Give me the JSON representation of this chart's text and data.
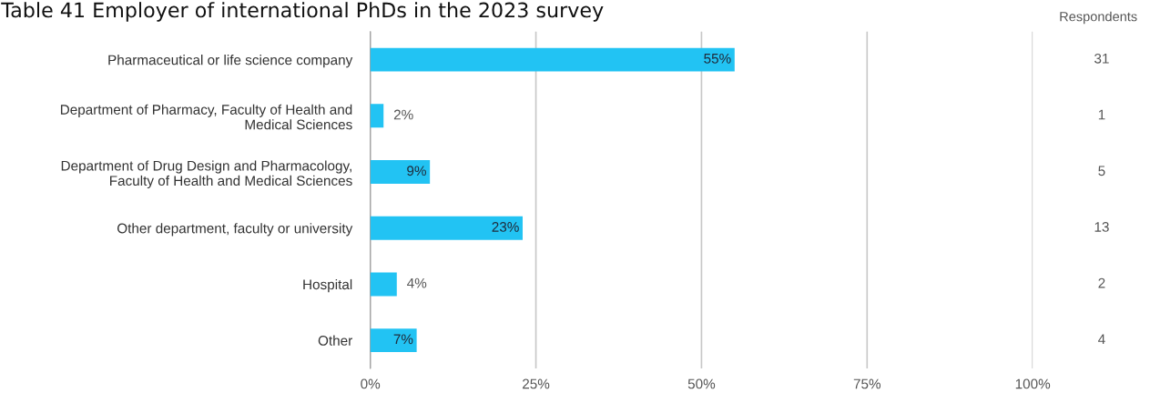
{
  "chart_data": {
    "type": "bar",
    "orientation": "horizontal",
    "title": "Table 41 Employer of international PhDs in the 2023 survey",
    "categories": [
      "Pharmaceutical or life science company",
      "Department of Pharmacy, Faculty of Health and\nMedical Sciences",
      "Department of Drug Design and Pharmacology,\nFaculty of Health and Medical Sciences",
      "Other department, faculty or university",
      "Hospital",
      "Other"
    ],
    "values": [
      55,
      2,
      9,
      23,
      4,
      7
    ],
    "value_labels": [
      "55%",
      "2%",
      "9%",
      "23%",
      "4%",
      "7%"
    ],
    "color": "#22c3f3",
    "xlim": [
      0,
      100
    ],
    "xticks": [
      {
        "value": 0,
        "label": "0%"
      },
      {
        "value": 25,
        "label": "25%"
      },
      {
        "value": 50,
        "label": "50%"
      },
      {
        "value": 75,
        "label": "75%"
      },
      {
        "value": 100,
        "label": "100%"
      }
    ],
    "grid": "x",
    "annotations": [
      "Respondents",
      "31",
      "1",
      "5",
      "13",
      "2",
      "4"
    ]
  }
}
